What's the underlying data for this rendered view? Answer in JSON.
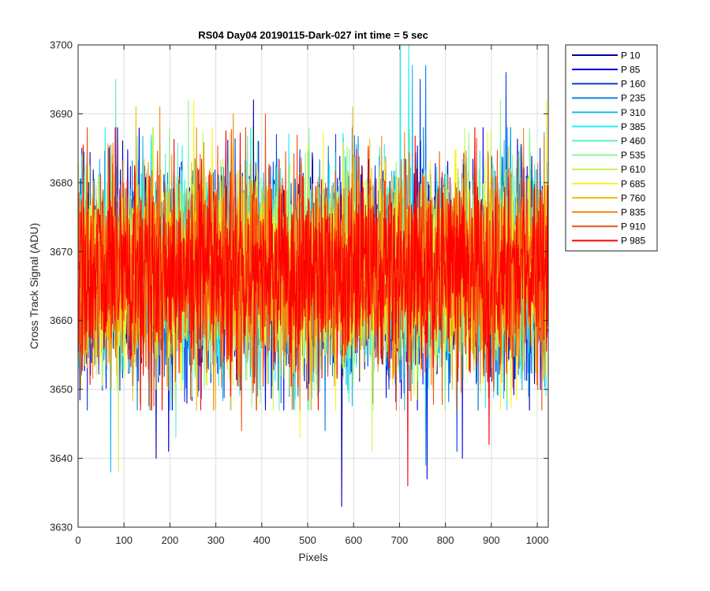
{
  "chart_data": {
    "type": "line",
    "title": "RS04 Day04 20190115-Dark-027 int time = 5 sec",
    "xlabel": "Pixels",
    "ylabel": "Cross Track Signal (ADU)",
    "xlim": [
      0,
      1024
    ],
    "ylim": [
      3630,
      3700
    ],
    "xticks": [
      0,
      100,
      200,
      300,
      400,
      500,
      600,
      700,
      800,
      900,
      1000
    ],
    "yticks": [
      3630,
      3640,
      3650,
      3660,
      3670,
      3680,
      3690,
      3700
    ],
    "grid": true,
    "legend_position": "outside-top-right",
    "x_range": [
      1,
      1024
    ],
    "noise_center": 3667,
    "noise_sigma": 7.2,
    "series": [
      {
        "name": "P 10",
        "color": "#0000aa",
        "extremes": [
          [
            382,
            3692
          ],
          [
            574,
            3633
          ],
          [
            170,
            3640
          ]
        ]
      },
      {
        "name": "P 85",
        "color": "#0000e0",
        "extremes": [
          [
            760,
            3637
          ],
          [
            837,
            3640
          ],
          [
            197,
            3641
          ]
        ]
      },
      {
        "name": "P 160",
        "color": "#0a3fe0",
        "extremes": [
          [
            745,
            3695
          ],
          [
            932,
            3696
          ],
          [
            825,
            3641
          ]
        ]
      },
      {
        "name": "P 235",
        "color": "#0a80e0",
        "extremes": [
          [
            757,
            3697
          ],
          [
            538,
            3644
          ]
        ]
      },
      {
        "name": "P 310",
        "color": "#12b8f0",
        "extremes": [
          [
            728,
            3697
          ],
          [
            757,
            3639
          ],
          [
            71,
            3638
          ]
        ]
      },
      {
        "name": "P 385",
        "color": "#22eeee",
        "extremes": [
          [
            702,
            3700
          ],
          [
            720,
            3700
          ]
        ]
      },
      {
        "name": "P 460",
        "color": "#5ff0c8",
        "extremes": [
          [
            82,
            3695
          ],
          [
            213,
            3643
          ]
        ]
      },
      {
        "name": "P 535",
        "color": "#8ff59a",
        "extremes": [
          [
            240,
            3692
          ],
          [
            920,
            3692
          ]
        ]
      },
      {
        "name": "P 610",
        "color": "#c8f55a",
        "extremes": [
          [
            640,
            3641
          ],
          [
            88,
            3638
          ]
        ]
      },
      {
        "name": "P 685",
        "color": "#f5f520",
        "extremes": [
          [
            252,
            3692
          ],
          [
            1020,
            3692
          ],
          [
            483,
            3643
          ]
        ]
      },
      {
        "name": "P 760",
        "color": "#f0be10",
        "extremes": [
          [
            598,
            3691
          ],
          [
            126,
            3691
          ]
        ]
      },
      {
        "name": "P 835",
        "color": "#f08a10",
        "extremes": [
          [
            178,
            3691
          ],
          [
            338,
            3690
          ]
        ]
      },
      {
        "name": "P 910",
        "color": "#f55010",
        "extremes": [
          [
            408,
            3690
          ],
          [
            356,
            3644
          ]
        ]
      },
      {
        "name": "P 985",
        "color": "#ff0000",
        "extremes": [
          [
            718,
            3636
          ],
          [
            895,
            3642
          ]
        ]
      }
    ]
  }
}
